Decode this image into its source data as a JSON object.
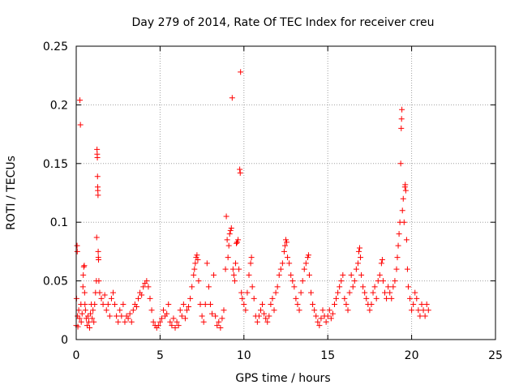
{
  "chart_data": {
    "type": "scatter",
    "title": "Day 279 of 2014, Rate Of TEC Index for receiver creu",
    "xlabel": "GPS time / hours",
    "ylabel": "ROTI / TECUs",
    "xlim": [
      0,
      25
    ],
    "ylim": [
      0,
      0.25
    ],
    "xticks": [
      0,
      5,
      10,
      15,
      20,
      25
    ],
    "xtick_labels": [
      "0",
      "5",
      "10",
      "15",
      "20",
      "25"
    ],
    "yticks": [
      0,
      0.05,
      0.1,
      0.15,
      0.2,
      0.25
    ],
    "ytick_labels": [
      "0",
      "0.05",
      "0.1",
      "0.15",
      "0.2",
      "0.25"
    ],
    "grid": true,
    "marker": "+",
    "series": [
      {
        "color": "#ff0000",
        "points": [
          [
            0.0,
            0.012
          ],
          [
            0.02,
            0.035
          ],
          [
            0.05,
            0.08
          ],
          [
            0.06,
            0.075
          ],
          [
            0.08,
            0.02
          ],
          [
            0.1,
            0.011
          ],
          [
            0.15,
            0.025
          ],
          [
            0.2,
            0.018
          ],
          [
            0.22,
            0.204
          ],
          [
            0.25,
            0.183
          ],
          [
            0.28,
            0.03
          ],
          [
            0.3,
            0.015
          ],
          [
            0.35,
            0.022
          ],
          [
            0.4,
            0.045
          ],
          [
            0.42,
            0.055
          ],
          [
            0.45,
            0.062
          ],
          [
            0.48,
            0.063
          ],
          [
            0.5,
            0.04
          ],
          [
            0.52,
            0.03
          ],
          [
            0.55,
            0.025
          ],
          [
            0.6,
            0.018
          ],
          [
            0.65,
            0.012
          ],
          [
            0.7,
            0.02
          ],
          [
            0.75,
            0.015
          ],
          [
            0.8,
            0.01
          ],
          [
            0.85,
            0.022
          ],
          [
            0.9,
            0.03
          ],
          [
            0.95,
            0.018
          ],
          [
            1.0,
            0.025
          ],
          [
            1.05,
            0.015
          ],
          [
            1.1,
            0.03
          ],
          [
            1.15,
            0.04
          ],
          [
            1.2,
            0.05
          ],
          [
            1.22,
            0.087
          ],
          [
            1.24,
            0.162
          ],
          [
            1.25,
            0.158
          ],
          [
            1.26,
            0.155
          ],
          [
            1.27,
            0.139
          ],
          [
            1.28,
            0.13
          ],
          [
            1.29,
            0.127
          ],
          [
            1.3,
            0.123
          ],
          [
            1.31,
            0.075
          ],
          [
            1.32,
            0.07
          ],
          [
            1.33,
            0.068
          ],
          [
            1.35,
            0.05
          ],
          [
            1.4,
            0.04
          ],
          [
            1.5,
            0.035
          ],
          [
            1.6,
            0.03
          ],
          [
            1.7,
            0.038
          ],
          [
            1.8,
            0.025
          ],
          [
            1.9,
            0.03
          ],
          [
            2.0,
            0.02
          ],
          [
            2.1,
            0.035
          ],
          [
            2.2,
            0.04
          ],
          [
            2.3,
            0.03
          ],
          [
            2.4,
            0.02
          ],
          [
            2.5,
            0.015
          ],
          [
            2.6,
            0.025
          ],
          [
            2.7,
            0.02
          ],
          [
            2.8,
            0.03
          ],
          [
            2.9,
            0.015
          ],
          [
            3.0,
            0.02
          ],
          [
            3.1,
            0.018
          ],
          [
            3.2,
            0.022
          ],
          [
            3.3,
            0.015
          ],
          [
            3.4,
            0.025
          ],
          [
            3.5,
            0.03
          ],
          [
            3.6,
            0.028
          ],
          [
            3.7,
            0.035
          ],
          [
            3.8,
            0.04
          ],
          [
            3.9,
            0.038
          ],
          [
            4.0,
            0.045
          ],
          [
            4.1,
            0.048
          ],
          [
            4.2,
            0.05
          ],
          [
            4.3,
            0.045
          ],
          [
            4.4,
            0.035
          ],
          [
            4.5,
            0.025
          ],
          [
            4.6,
            0.015
          ],
          [
            4.7,
            0.012
          ],
          [
            4.8,
            0.01
          ],
          [
            4.9,
            0.012
          ],
          [
            5.0,
            0.015
          ],
          [
            5.1,
            0.018
          ],
          [
            5.2,
            0.025
          ],
          [
            5.3,
            0.02
          ],
          [
            5.4,
            0.022
          ],
          [
            5.5,
            0.03
          ],
          [
            5.6,
            0.015
          ],
          [
            5.7,
            0.012
          ],
          [
            5.8,
            0.018
          ],
          [
            5.9,
            0.01
          ],
          [
            6.0,
            0.015
          ],
          [
            6.1,
            0.012
          ],
          [
            6.2,
            0.025
          ],
          [
            6.3,
            0.02
          ],
          [
            6.4,
            0.03
          ],
          [
            6.5,
            0.018
          ],
          [
            6.6,
            0.025
          ],
          [
            6.7,
            0.028
          ],
          [
            6.8,
            0.035
          ],
          [
            6.9,
            0.045
          ],
          [
            7.0,
            0.055
          ],
          [
            7.05,
            0.06
          ],
          [
            7.1,
            0.065
          ],
          [
            7.15,
            0.07
          ],
          [
            7.2,
            0.072
          ],
          [
            7.25,
            0.068
          ],
          [
            7.3,
            0.05
          ],
          [
            7.4,
            0.03
          ],
          [
            7.5,
            0.02
          ],
          [
            7.6,
            0.015
          ],
          [
            7.7,
            0.03
          ],
          [
            7.8,
            0.065
          ],
          [
            7.9,
            0.045
          ],
          [
            8.0,
            0.03
          ],
          [
            8.1,
            0.022
          ],
          [
            8.2,
            0.055
          ],
          [
            8.3,
            0.02
          ],
          [
            8.4,
            0.012
          ],
          [
            8.5,
            0.015
          ],
          [
            8.6,
            0.01
          ],
          [
            8.7,
            0.018
          ],
          [
            8.8,
            0.025
          ],
          [
            8.9,
            0.06
          ],
          [
            8.95,
            0.105
          ],
          [
            9.0,
            0.085
          ],
          [
            9.05,
            0.07
          ],
          [
            9.1,
            0.08
          ],
          [
            9.15,
            0.09
          ],
          [
            9.2,
            0.093
          ],
          [
            9.25,
            0.095
          ],
          [
            9.3,
            0.206
          ],
          [
            9.35,
            0.06
          ],
          [
            9.4,
            0.055
          ],
          [
            9.45,
            0.05
          ],
          [
            9.5,
            0.065
          ],
          [
            9.55,
            0.082
          ],
          [
            9.6,
            0.083
          ],
          [
            9.65,
            0.085
          ],
          [
            9.7,
            0.06
          ],
          [
            9.75,
            0.145
          ],
          [
            9.78,
            0.142
          ],
          [
            9.8,
            0.228
          ],
          [
            9.85,
            0.04
          ],
          [
            9.9,
            0.035
          ],
          [
            10.0,
            0.03
          ],
          [
            10.1,
            0.025
          ],
          [
            10.2,
            0.04
          ],
          [
            10.3,
            0.055
          ],
          [
            10.4,
            0.065
          ],
          [
            10.45,
            0.07
          ],
          [
            10.5,
            0.045
          ],
          [
            10.6,
            0.035
          ],
          [
            10.7,
            0.02
          ],
          [
            10.8,
            0.015
          ],
          [
            10.9,
            0.02
          ],
          [
            11.0,
            0.025
          ],
          [
            11.1,
            0.03
          ],
          [
            11.2,
            0.022
          ],
          [
            11.3,
            0.018
          ],
          [
            11.4,
            0.015
          ],
          [
            11.5,
            0.02
          ],
          [
            11.6,
            0.03
          ],
          [
            11.7,
            0.035
          ],
          [
            11.8,
            0.025
          ],
          [
            11.9,
            0.04
          ],
          [
            12.0,
            0.045
          ],
          [
            12.1,
            0.055
          ],
          [
            12.2,
            0.06
          ],
          [
            12.3,
            0.065
          ],
          [
            12.4,
            0.075
          ],
          [
            12.45,
            0.08
          ],
          [
            12.5,
            0.085
          ],
          [
            12.55,
            0.083
          ],
          [
            12.6,
            0.07
          ],
          [
            12.7,
            0.065
          ],
          [
            12.8,
            0.055
          ],
          [
            12.9,
            0.05
          ],
          [
            13.0,
            0.045
          ],
          [
            13.1,
            0.035
          ],
          [
            13.2,
            0.03
          ],
          [
            13.3,
            0.025
          ],
          [
            13.4,
            0.04
          ],
          [
            13.5,
            0.05
          ],
          [
            13.6,
            0.06
          ],
          [
            13.7,
            0.065
          ],
          [
            13.8,
            0.07
          ],
          [
            13.85,
            0.072
          ],
          [
            13.9,
            0.055
          ],
          [
            14.0,
            0.04
          ],
          [
            14.1,
            0.03
          ],
          [
            14.2,
            0.025
          ],
          [
            14.3,
            0.02
          ],
          [
            14.4,
            0.015
          ],
          [
            14.5,
            0.012
          ],
          [
            14.6,
            0.018
          ],
          [
            14.7,
            0.025
          ],
          [
            14.8,
            0.02
          ],
          [
            14.9,
            0.015
          ],
          [
            15.0,
            0.02
          ],
          [
            15.1,
            0.025
          ],
          [
            15.2,
            0.018
          ],
          [
            15.3,
            0.022
          ],
          [
            15.4,
            0.03
          ],
          [
            15.5,
            0.035
          ],
          [
            15.6,
            0.04
          ],
          [
            15.7,
            0.045
          ],
          [
            15.8,
            0.05
          ],
          [
            15.9,
            0.055
          ],
          [
            16.0,
            0.035
          ],
          [
            16.1,
            0.03
          ],
          [
            16.2,
            0.025
          ],
          [
            16.3,
            0.04
          ],
          [
            16.4,
            0.055
          ],
          [
            16.5,
            0.045
          ],
          [
            16.6,
            0.05
          ],
          [
            16.7,
            0.06
          ],
          [
            16.8,
            0.065
          ],
          [
            16.85,
            0.075
          ],
          [
            16.9,
            0.078
          ],
          [
            16.95,
            0.07
          ],
          [
            17.0,
            0.055
          ],
          [
            17.1,
            0.045
          ],
          [
            17.2,
            0.04
          ],
          [
            17.3,
            0.035
          ],
          [
            17.4,
            0.03
          ],
          [
            17.5,
            0.025
          ],
          [
            17.6,
            0.03
          ],
          [
            17.7,
            0.04
          ],
          [
            17.8,
            0.045
          ],
          [
            17.9,
            0.035
          ],
          [
            18.0,
            0.05
          ],
          [
            18.1,
            0.055
          ],
          [
            18.2,
            0.065
          ],
          [
            18.25,
            0.068
          ],
          [
            18.3,
            0.05
          ],
          [
            18.4,
            0.04
          ],
          [
            18.5,
            0.035
          ],
          [
            18.6,
            0.045
          ],
          [
            18.7,
            0.04
          ],
          [
            18.8,
            0.035
          ],
          [
            18.9,
            0.045
          ],
          [
            19.0,
            0.05
          ],
          [
            19.1,
            0.06
          ],
          [
            19.15,
            0.07
          ],
          [
            19.2,
            0.08
          ],
          [
            19.25,
            0.09
          ],
          [
            19.3,
            0.1
          ],
          [
            19.35,
            0.15
          ],
          [
            19.38,
            0.18
          ],
          [
            19.4,
            0.188
          ],
          [
            19.42,
            0.196
          ],
          [
            19.45,
            0.11
          ],
          [
            19.5,
            0.12
          ],
          [
            19.55,
            0.1
          ],
          [
            19.6,
            0.13
          ],
          [
            19.62,
            0.132
          ],
          [
            19.65,
            0.127
          ],
          [
            19.7,
            0.085
          ],
          [
            19.75,
            0.06
          ],
          [
            19.8,
            0.045
          ],
          [
            19.9,
            0.035
          ],
          [
            20.0,
            0.025
          ],
          [
            20.1,
            0.03
          ],
          [
            20.2,
            0.04
          ],
          [
            20.3,
            0.035
          ],
          [
            20.4,
            0.025
          ],
          [
            20.5,
            0.02
          ],
          [
            20.6,
            0.03
          ],
          [
            20.7,
            0.025
          ],
          [
            20.8,
            0.02
          ],
          [
            20.9,
            0.03
          ],
          [
            21.0,
            0.025
          ]
        ]
      }
    ]
  }
}
